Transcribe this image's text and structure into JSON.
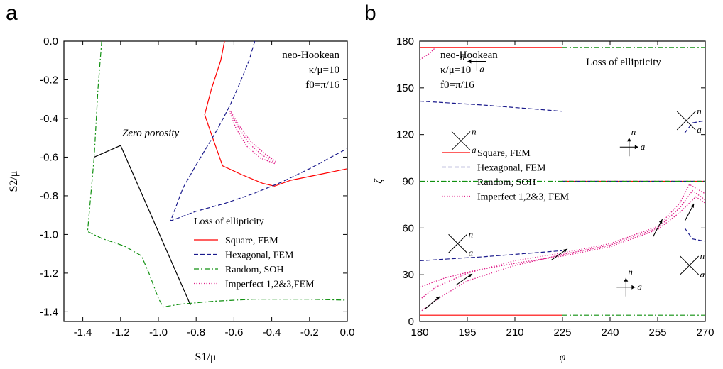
{
  "colors": {
    "square": "#ff0000",
    "hexagonal": "#1a1a8c",
    "random": "#109010",
    "imperfect": "#e0208a",
    "zero": "#000000"
  },
  "chart_data": [
    {
      "panel": "a",
      "type": "line",
      "xlabel": "S1/μ",
      "ylabel": "S2/μ",
      "xlim": [
        -1.5,
        0.0
      ],
      "ylim": [
        -1.45,
        0.0
      ],
      "xticks": [
        "-1.4",
        "-1.2",
        "-1.0",
        "-0.8",
        "-0.6",
        "-0.4",
        "-0.2",
        "0.0"
      ],
      "yticks": [
        "0.0",
        "-0.2",
        "-0.4",
        "-0.6",
        "-0.8",
        "-1.0",
        "-1.2",
        "-1.4"
      ],
      "annotation_lines": [
        "neo-Hookean",
        "κ/μ=10",
        "f0=π/16"
      ],
      "zero_porosity_label": "Zero porosity",
      "legend_title": "Loss of ellipticity",
      "legend_position": "bottom-right",
      "series": [
        {
          "name": "Square, FEM",
          "key": "square",
          "style": "solid",
          "segments": [
            [
              [
                -0.65,
                0.0
              ],
              [
                -0.67,
                -0.1
              ],
              [
                -0.72,
                -0.25
              ],
              [
                -0.755,
                -0.38
              ],
              [
                -0.72,
                -0.48
              ],
              [
                -0.66,
                -0.645
              ],
              [
                -0.56,
                -0.69
              ],
              [
                -0.45,
                -0.735
              ],
              [
                -0.385,
                -0.75
              ],
              [
                -0.3,
                -0.72
              ],
              [
                -0.15,
                -0.69
              ],
              [
                0.0,
                -0.66
              ]
            ]
          ]
        },
        {
          "name": "Hexagonal, FEM",
          "key": "hexagonal",
          "style": "dashed",
          "segments": [
            [
              [
                -0.49,
                0.0
              ],
              [
                -0.52,
                -0.1
              ],
              [
                -0.57,
                -0.22
              ],
              [
                -0.62,
                -0.33
              ],
              [
                -0.69,
                -0.46
              ],
              [
                -0.8,
                -0.64
              ],
              [
                -0.87,
                -0.76
              ],
              [
                -0.935,
                -0.93
              ],
              [
                -0.8,
                -0.88
              ],
              [
                -0.65,
                -0.84
              ],
              [
                -0.5,
                -0.79
              ],
              [
                -0.35,
                -0.73
              ],
              [
                -0.2,
                -0.66
              ],
              [
                0.0,
                -0.555
              ]
            ]
          ]
        },
        {
          "name": "Random, SOH",
          "key": "random",
          "style": "dashdot",
          "segments": [
            [
              [
                -1.3,
                0.0
              ],
              [
                -1.32,
                -0.25
              ],
              [
                -1.34,
                -0.6
              ],
              [
                -1.375,
                -0.985
              ],
              [
                -1.3,
                -1.02
              ],
              [
                -1.18,
                -1.06
              ],
              [
                -1.09,
                -1.11
              ],
              [
                -1.05,
                -1.2
              ],
              [
                -1.0,
                -1.33
              ],
              [
                -0.975,
                -1.375
              ],
              [
                -0.88,
                -1.36
              ],
              [
                -0.7,
                -1.345
              ],
              [
                -0.5,
                -1.335
              ],
              [
                -0.2,
                -1.335
              ],
              [
                0.0,
                -1.34
              ]
            ]
          ]
        },
        {
          "name": "Imperfect 1,2&3,FEM",
          "key": "imperfect",
          "style": "dotted",
          "segments": [
            [
              [
                -0.62,
                -0.36
              ],
              [
                -0.58,
                -0.44
              ],
              [
                -0.52,
                -0.53
              ],
              [
                -0.45,
                -0.59
              ],
              [
                -0.38,
                -0.63
              ]
            ],
            [
              [
                -0.625,
                -0.36
              ],
              [
                -0.59,
                -0.45
              ],
              [
                -0.53,
                -0.545
              ],
              [
                -0.46,
                -0.605
              ],
              [
                -0.38,
                -0.635
              ]
            ],
            [
              [
                -0.615,
                -0.365
              ],
              [
                -0.57,
                -0.44
              ],
              [
                -0.51,
                -0.52
              ],
              [
                -0.44,
                -0.58
              ],
              [
                -0.375,
                -0.625
              ]
            ]
          ]
        },
        {
          "name": "",
          "key": "zero",
          "style": "solid",
          "segments": [
            [
              [
                -1.34,
                -0.6
              ],
              [
                -1.2,
                -0.54
              ],
              [
                -0.83,
                -1.365
              ]
            ]
          ]
        }
      ]
    },
    {
      "panel": "b",
      "type": "line",
      "xlabel": "φ",
      "ylabel": "ζ",
      "xlim": [
        180,
        270
      ],
      "ylim": [
        0,
        180
      ],
      "xticks": [
        "180",
        "195",
        "210",
        "225",
        "240",
        "255",
        "270"
      ],
      "yticks": [
        "0",
        "30",
        "60",
        "90",
        "120",
        "150",
        "180"
      ],
      "annotation_lines": [
        "neo-Hookean",
        "κ/μ=10",
        "f0=π/16"
      ],
      "title_text": "Loss of ellipticity",
      "legend_position": "center-left",
      "series": [
        {
          "name": "Square, FEM",
          "key": "square",
          "style": "solid",
          "segments": [
            [
              [
                180,
                176
              ],
              [
                225,
                176
              ]
            ],
            [
              [
                180,
                4
              ],
              [
                225,
                4
              ]
            ],
            [
              [
                225,
                90
              ],
              [
                270,
                90
              ]
            ]
          ]
        },
        {
          "name": "Hexagonal, FEM",
          "key": "hexagonal",
          "style": "dashed",
          "segments": [
            [
              [
                180,
                141.5
              ],
              [
                200,
                139
              ],
              [
                225,
                135
              ]
            ],
            [
              [
                180,
                39
              ],
              [
                200,
                41.5
              ],
              [
                225,
                45.5
              ]
            ],
            [
              [
                225,
                90
              ],
              [
                270,
                90
              ]
            ],
            [
              [
                263.5,
                121
              ],
              [
                266,
                127.5
              ],
              [
                270,
                129
              ]
            ],
            [
              [
                263.5,
                60
              ],
              [
                266,
                53
              ],
              [
                270,
                51.5
              ]
            ]
          ]
        },
        {
          "name": "Random, SOH",
          "key": "random",
          "style": "dashdot",
          "segments": [
            [
              [
                180,
                90
              ],
              [
                270,
                90
              ]
            ],
            [
              [
                225,
                176
              ],
              [
                270,
                176
              ]
            ],
            [
              [
                225,
                4
              ],
              [
                270,
                4
              ]
            ]
          ]
        },
        {
          "name": "Imperfect 1,2&3, FEM",
          "key": "imperfect",
          "style": "dotted",
          "segments": [
            [
              [
                180,
                14
              ],
              [
                185,
                22
              ],
              [
                195,
                31
              ],
              [
                210,
                39
              ],
              [
                225,
                44
              ],
              [
                240,
                50
              ],
              [
                255,
                61
              ],
              [
                262,
                76
              ],
              [
                265,
                88
              ],
              [
                270,
                82
              ]
            ],
            [
              [
                180,
                6
              ],
              [
                186,
                15
              ],
              [
                195,
                26
              ],
              [
                210,
                36
              ],
              [
                225,
                43
              ],
              [
                240,
                49
              ],
              [
                255,
                60
              ],
              [
                262,
                73
              ],
              [
                266,
                84
              ],
              [
                270,
                78
              ]
            ],
            [
              [
                180,
                22
              ],
              [
                188,
                28
              ],
              [
                198,
                33
              ],
              [
                212,
                38
              ],
              [
                225,
                42
              ],
              [
                240,
                48
              ],
              [
                255,
                59
              ],
              [
                262,
                70
              ],
              [
                267,
                80
              ],
              [
                270,
                76
              ]
            ],
            [
              [
                180,
                168
              ],
              [
                183,
                172
              ],
              [
                185,
                176
              ]
            ]
          ]
        }
      ],
      "markers": [
        {
          "phi": 198,
          "zeta": 167,
          "type": "leftarrow",
          "n": "n",
          "a": "a"
        },
        {
          "phi": 246,
          "zeta": 112,
          "type": "plus",
          "n": "n",
          "a": "a"
        },
        {
          "phi": 245,
          "zeta": 22,
          "type": "plus",
          "n": "n",
          "a": "a"
        },
        {
          "phi": 193,
          "zeta": 116,
          "type": "x",
          "n": "n",
          "a": "a"
        },
        {
          "phi": 264,
          "zeta": 129,
          "type": "x",
          "n": "n",
          "a": "a"
        },
        {
          "phi": 192,
          "zeta": 50,
          "type": "x",
          "n": "n",
          "a": "a"
        },
        {
          "phi": 265,
          "zeta": 36,
          "type": "x",
          "n": "n",
          "a": "a"
        }
      ],
      "arrows": [
        {
          "phi": 184,
          "zeta": 12,
          "angle": 40
        },
        {
          "phi": 194,
          "zeta": 27,
          "angle": 35
        },
        {
          "phi": 224,
          "zeta": 43,
          "angle": 35
        },
        {
          "phi": 255,
          "zeta": 60,
          "angle": 62
        },
        {
          "phi": 265,
          "zeta": 70,
          "angle": 62
        }
      ]
    }
  ]
}
